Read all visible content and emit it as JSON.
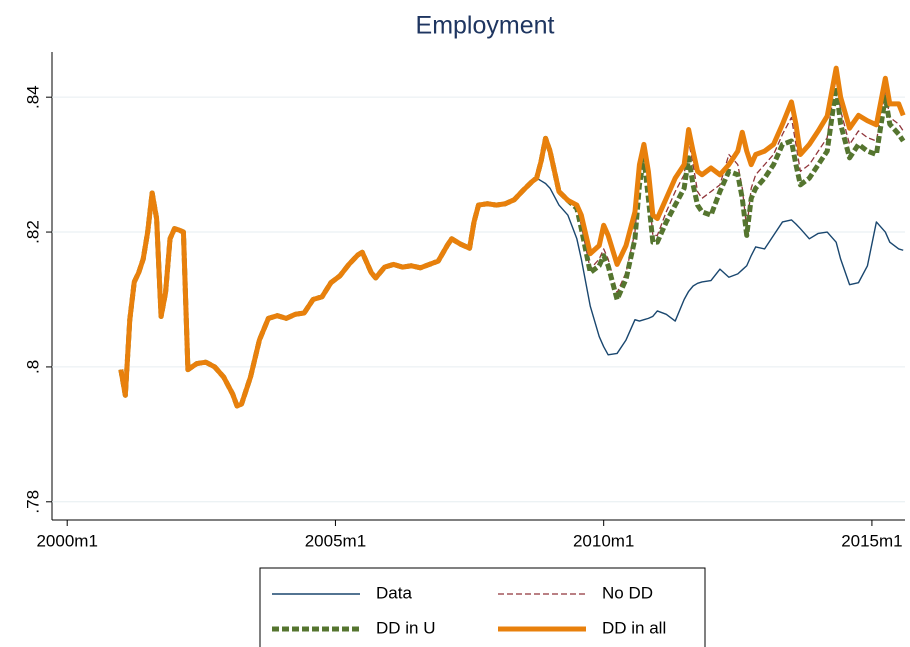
{
  "chart_data": {
    "type": "line",
    "title": "Employment",
    "x": [
      492,
      493,
      494,
      495,
      496,
      497,
      498,
      499,
      500,
      501,
      502,
      503,
      504,
      505,
      506,
      507,
      509,
      511,
      513,
      515,
      517,
      518,
      519,
      521,
      523,
      525,
      527,
      529,
      531,
      533,
      535,
      537,
      539,
      541,
      543,
      545,
      546,
      548,
      549,
      551,
      553,
      555,
      557,
      559,
      561,
      563,
      565,
      566,
      568,
      570,
      571,
      572,
      574,
      576,
      578,
      580,
      582,
      584,
      585,
      586,
      587,
      588,
      590,
      592,
      594,
      595,
      597,
      599,
      600,
      601,
      603,
      605,
      607,
      608,
      609,
      610,
      611,
      612,
      614,
      616,
      618,
      619,
      620,
      621,
      622,
      624,
      626,
      628,
      630,
      631,
      632,
      633,
      634,
      636,
      638,
      640,
      642,
      643,
      644,
      646,
      648,
      650,
      652,
      653,
      655,
      657,
      659,
      661,
      663,
      664,
      666,
      667
    ],
    "xlim": [
      476.6,
      667.4
    ],
    "xticks": [
      {
        "value": 480,
        "label": "2000m1"
      },
      {
        "value": 540,
        "label": "2005m1"
      },
      {
        "value": 600,
        "label": "2010m1"
      },
      {
        "value": 660,
        "label": "2015m1"
      }
    ],
    "ylim": [
      0.7773,
      0.8467
    ],
    "yticks": [
      {
        "value": 0.78,
        "label": ".78"
      },
      {
        "value": 0.8,
        "label": ".8"
      },
      {
        "value": 0.82,
        "label": ".82"
      },
      {
        "value": 0.84,
        "label": ".84"
      }
    ],
    "grid": true,
    "legend": "bottom",
    "series": [
      {
        "name": "Data",
        "color": "#1a476f",
        "style": "solid",
        "values": [
          0.7996,
          0.7958,
          0.807,
          0.8126,
          0.814,
          0.816,
          0.82,
          0.8258,
          0.822,
          0.8075,
          0.811,
          0.819,
          0.8205,
          0.8203,
          0.82,
          0.7996,
          0.8005,
          0.8007,
          0.8,
          0.7985,
          0.796,
          0.7942,
          0.7945,
          0.7985,
          0.804,
          0.8072,
          0.8076,
          0.8072,
          0.8078,
          0.808,
          0.81,
          0.8104,
          0.8125,
          0.8135,
          0.8152,
          0.8166,
          0.817,
          0.814,
          0.8132,
          0.8148,
          0.8152,
          0.8148,
          0.815,
          0.8147,
          0.8152,
          0.8157,
          0.818,
          0.819,
          0.8182,
          0.8176,
          0.8215,
          0.824,
          0.8242,
          0.824,
          0.8242,
          0.8248,
          0.8262,
          0.8275,
          0.828,
          0.8276,
          0.8272,
          0.8265,
          0.824,
          0.8225,
          0.819,
          0.816,
          0.809,
          0.8045,
          0.803,
          0.8018,
          0.802,
          0.804,
          0.807,
          0.8068,
          0.807,
          0.8072,
          0.8075,
          0.8083,
          0.8078,
          0.8068,
          0.81,
          0.8112,
          0.812,
          0.8124,
          0.8126,
          0.8128,
          0.8145,
          0.8133,
          0.8138,
          0.8144,
          0.815,
          0.8165,
          0.8178,
          0.8175,
          0.8195,
          0.8215,
          0.8218,
          0.8212,
          0.8205,
          0.819,
          0.8198,
          0.82,
          0.8185,
          0.816,
          0.8122,
          0.8125,
          0.815,
          0.8215,
          0.82,
          0.8185,
          0.8175,
          0.8173
        ]
      },
      {
        "name": "No DD",
        "color": "#90353b",
        "style": "dash",
        "values": [
          0.7996,
          0.7958,
          0.807,
          0.8126,
          0.814,
          0.816,
          0.82,
          0.8258,
          0.822,
          0.8075,
          0.811,
          0.819,
          0.8205,
          0.8203,
          0.82,
          0.7996,
          0.8005,
          0.8007,
          0.8,
          0.7985,
          0.796,
          0.7942,
          0.7945,
          0.7985,
          0.804,
          0.8072,
          0.8076,
          0.8072,
          0.8078,
          0.808,
          0.81,
          0.8104,
          0.8125,
          0.8135,
          0.8152,
          0.8166,
          0.817,
          0.814,
          0.8132,
          0.8148,
          0.8152,
          0.8148,
          0.815,
          0.8147,
          0.8152,
          0.8157,
          0.818,
          0.819,
          0.8182,
          0.8176,
          0.8215,
          0.824,
          0.8242,
          0.824,
          0.8242,
          0.8248,
          0.8262,
          0.8275,
          0.828,
          0.8305,
          0.8339,
          0.832,
          0.826,
          0.8247,
          0.8238,
          0.821,
          0.8145,
          0.816,
          0.8175,
          0.816,
          0.811,
          0.814,
          0.82,
          0.828,
          0.832,
          0.8265,
          0.8195,
          0.8195,
          0.823,
          0.826,
          0.8285,
          0.8335,
          0.83,
          0.826,
          0.825,
          0.826,
          0.827,
          0.8315,
          0.83,
          0.8265,
          0.8205,
          0.8265,
          0.8285,
          0.83,
          0.8315,
          0.8345,
          0.837,
          0.833,
          0.829,
          0.83,
          0.832,
          0.834,
          0.843,
          0.838,
          0.833,
          0.835,
          0.834,
          0.8335,
          0.841,
          0.837,
          0.836,
          0.835
        ]
      },
      {
        "name": "DD in U",
        "color": "#55752f",
        "style": "thickdash",
        "values": [
          0.7996,
          0.7958,
          0.807,
          0.8126,
          0.814,
          0.816,
          0.82,
          0.8258,
          0.822,
          0.8075,
          0.811,
          0.819,
          0.8205,
          0.8203,
          0.82,
          0.7996,
          0.8005,
          0.8007,
          0.8,
          0.7985,
          0.796,
          0.7942,
          0.7945,
          0.7985,
          0.804,
          0.8072,
          0.8076,
          0.8072,
          0.8078,
          0.808,
          0.81,
          0.8104,
          0.8125,
          0.8135,
          0.8152,
          0.8166,
          0.817,
          0.814,
          0.8132,
          0.8148,
          0.8152,
          0.8148,
          0.815,
          0.8147,
          0.8152,
          0.8157,
          0.818,
          0.819,
          0.8182,
          0.8176,
          0.8215,
          0.824,
          0.8242,
          0.824,
          0.8242,
          0.8248,
          0.8262,
          0.8275,
          0.828,
          0.8305,
          0.8339,
          0.832,
          0.826,
          0.8247,
          0.8235,
          0.8205,
          0.814,
          0.815,
          0.8165,
          0.815,
          0.81,
          0.813,
          0.819,
          0.827,
          0.831,
          0.825,
          0.8185,
          0.8185,
          0.8215,
          0.824,
          0.8265,
          0.831,
          0.827,
          0.824,
          0.823,
          0.8225,
          0.826,
          0.829,
          0.8285,
          0.825,
          0.8195,
          0.825,
          0.8265,
          0.828,
          0.83,
          0.833,
          0.8335,
          0.83,
          0.827,
          0.828,
          0.83,
          0.832,
          0.8415,
          0.836,
          0.831,
          0.833,
          0.832,
          0.8315,
          0.84,
          0.836,
          0.8345,
          0.8335
        ]
      },
      {
        "name": "DD in all",
        "color": "#e8800c",
        "style": "thick",
        "values": [
          0.7996,
          0.7958,
          0.807,
          0.8126,
          0.814,
          0.816,
          0.82,
          0.8258,
          0.822,
          0.8075,
          0.811,
          0.819,
          0.8205,
          0.8203,
          0.82,
          0.7996,
          0.8005,
          0.8007,
          0.8,
          0.7985,
          0.796,
          0.7942,
          0.7945,
          0.7985,
          0.804,
          0.8072,
          0.8076,
          0.8072,
          0.8078,
          0.808,
          0.81,
          0.8104,
          0.8125,
          0.8135,
          0.8152,
          0.8166,
          0.817,
          0.814,
          0.8132,
          0.8148,
          0.8152,
          0.8148,
          0.815,
          0.8147,
          0.8152,
          0.8157,
          0.818,
          0.819,
          0.8182,
          0.8176,
          0.8215,
          0.824,
          0.8242,
          0.824,
          0.8242,
          0.8248,
          0.8262,
          0.8275,
          0.828,
          0.8305,
          0.8339,
          0.832,
          0.826,
          0.8247,
          0.824,
          0.8225,
          0.8168,
          0.818,
          0.821,
          0.8195,
          0.8152,
          0.818,
          0.823,
          0.83,
          0.833,
          0.829,
          0.8225,
          0.822,
          0.825,
          0.828,
          0.83,
          0.8352,
          0.832,
          0.829,
          0.8285,
          0.8295,
          0.8285,
          0.83,
          0.832,
          0.8348,
          0.832,
          0.83,
          0.8315,
          0.832,
          0.833,
          0.836,
          0.8393,
          0.836,
          0.8315,
          0.833,
          0.835,
          0.8372,
          0.8443,
          0.84,
          0.8354,
          0.8373,
          0.8365,
          0.8359,
          0.8428,
          0.839,
          0.839,
          0.8373
        ]
      }
    ]
  }
}
